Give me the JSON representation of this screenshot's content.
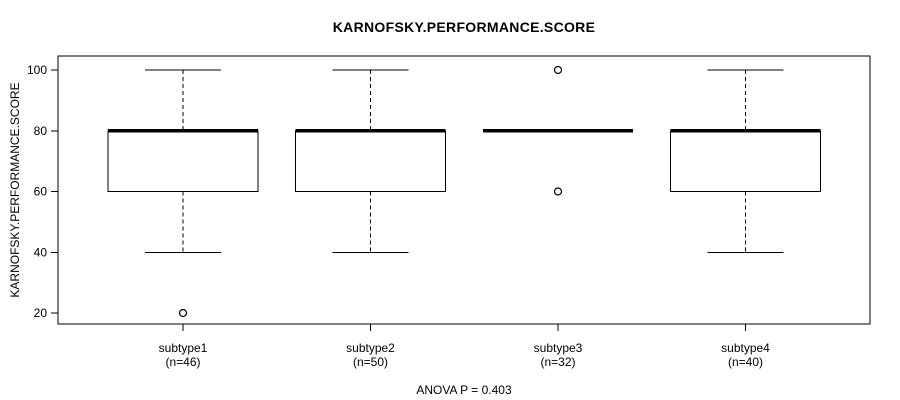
{
  "figure": {
    "title": "KARNOFSKY.PERFORMANCE.SCORE",
    "y_axis_label": "KARNOFSKY.PERFORMANCE.SCORE",
    "annotation": "ANOVA P = 0.403"
  },
  "chart_data": {
    "type": "boxplot",
    "title": "KARNOFSKY.PERFORMANCE.SCORE",
    "ylabel": "KARNOFSKY.PERFORMANCE.SCORE",
    "xlabel": "",
    "annotation": "ANOVA P = 0.403",
    "ylim": [
      16,
      105
    ],
    "yticks": [
      20,
      40,
      60,
      80,
      100
    ],
    "grid": false,
    "legend": "none",
    "categories": [
      "subtype1",
      "subtype2",
      "subtype3",
      "subtype4"
    ],
    "category_sublabels": [
      "(n=46)",
      "(n=50)",
      "(n=32)",
      "(n=40)"
    ],
    "series": [
      {
        "name": "subtype1",
        "n": 46,
        "whisker_low": 40,
        "q1": 60,
        "median": 80,
        "q3": 80,
        "whisker_high": 100,
        "outliers": [
          20
        ]
      },
      {
        "name": "subtype2",
        "n": 50,
        "whisker_low": 40,
        "q1": 60,
        "median": 80,
        "q3": 80,
        "whisker_high": 100,
        "outliers": []
      },
      {
        "name": "subtype3",
        "n": 32,
        "whisker_low": 80,
        "q1": 80,
        "median": 80,
        "q3": 80,
        "whisker_high": 80,
        "outliers": [
          100,
          60
        ]
      },
      {
        "name": "subtype4",
        "n": 40,
        "whisker_low": 40,
        "q1": 60,
        "median": 80,
        "q3": 80,
        "whisker_high": 100,
        "outliers": []
      }
    ],
    "colors": {
      "stroke": "#000000",
      "box_fill": "#ffffff",
      "background": "#ffffff"
    }
  }
}
